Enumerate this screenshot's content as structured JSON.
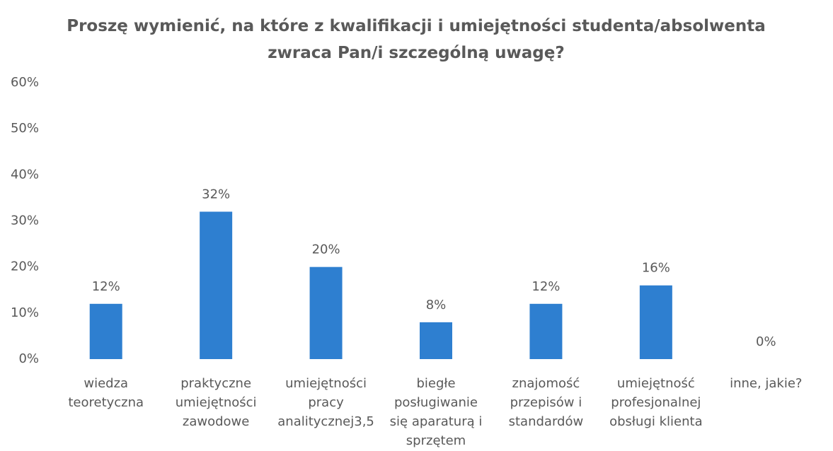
{
  "chart_data": {
    "type": "bar",
    "title": "Proszę wymienić, na które z kwalifikacji i umiejętności studenta/absolwenta\nzwraca Pan/i szczególną uwagę?",
    "categories": [
      "wiedza\nteoretyczna",
      "praktyczne\numiejętności\nzawodowe",
      "umiejętności\npracy\nanalitycznej3,5",
      "biegłe\nposługiwanie\nsię aparaturą i\nsprzętem",
      "znajomość\nprzepisów i\nstandardów",
      "umiejętność\nprofesjonalnej\nobsługi klienta",
      "inne, jakie?"
    ],
    "values": [
      12,
      32,
      20,
      8,
      12,
      16,
      0
    ],
    "value_labels": [
      "12%",
      "32%",
      "20%",
      "8%",
      "12%",
      "16%",
      "0%"
    ],
    "color": "#2e7fd0",
    "ylim": [
      0,
      60
    ],
    "yticks": [
      {
        "value": 0,
        "label": "0%"
      },
      {
        "value": 10,
        "label": "10%"
      },
      {
        "value": 20,
        "label": "20%"
      },
      {
        "value": 30,
        "label": "30%"
      },
      {
        "value": 40,
        "label": "40%"
      },
      {
        "value": 50,
        "label": "50%"
      },
      {
        "value": 60,
        "label": "60%"
      }
    ],
    "grid": false
  }
}
